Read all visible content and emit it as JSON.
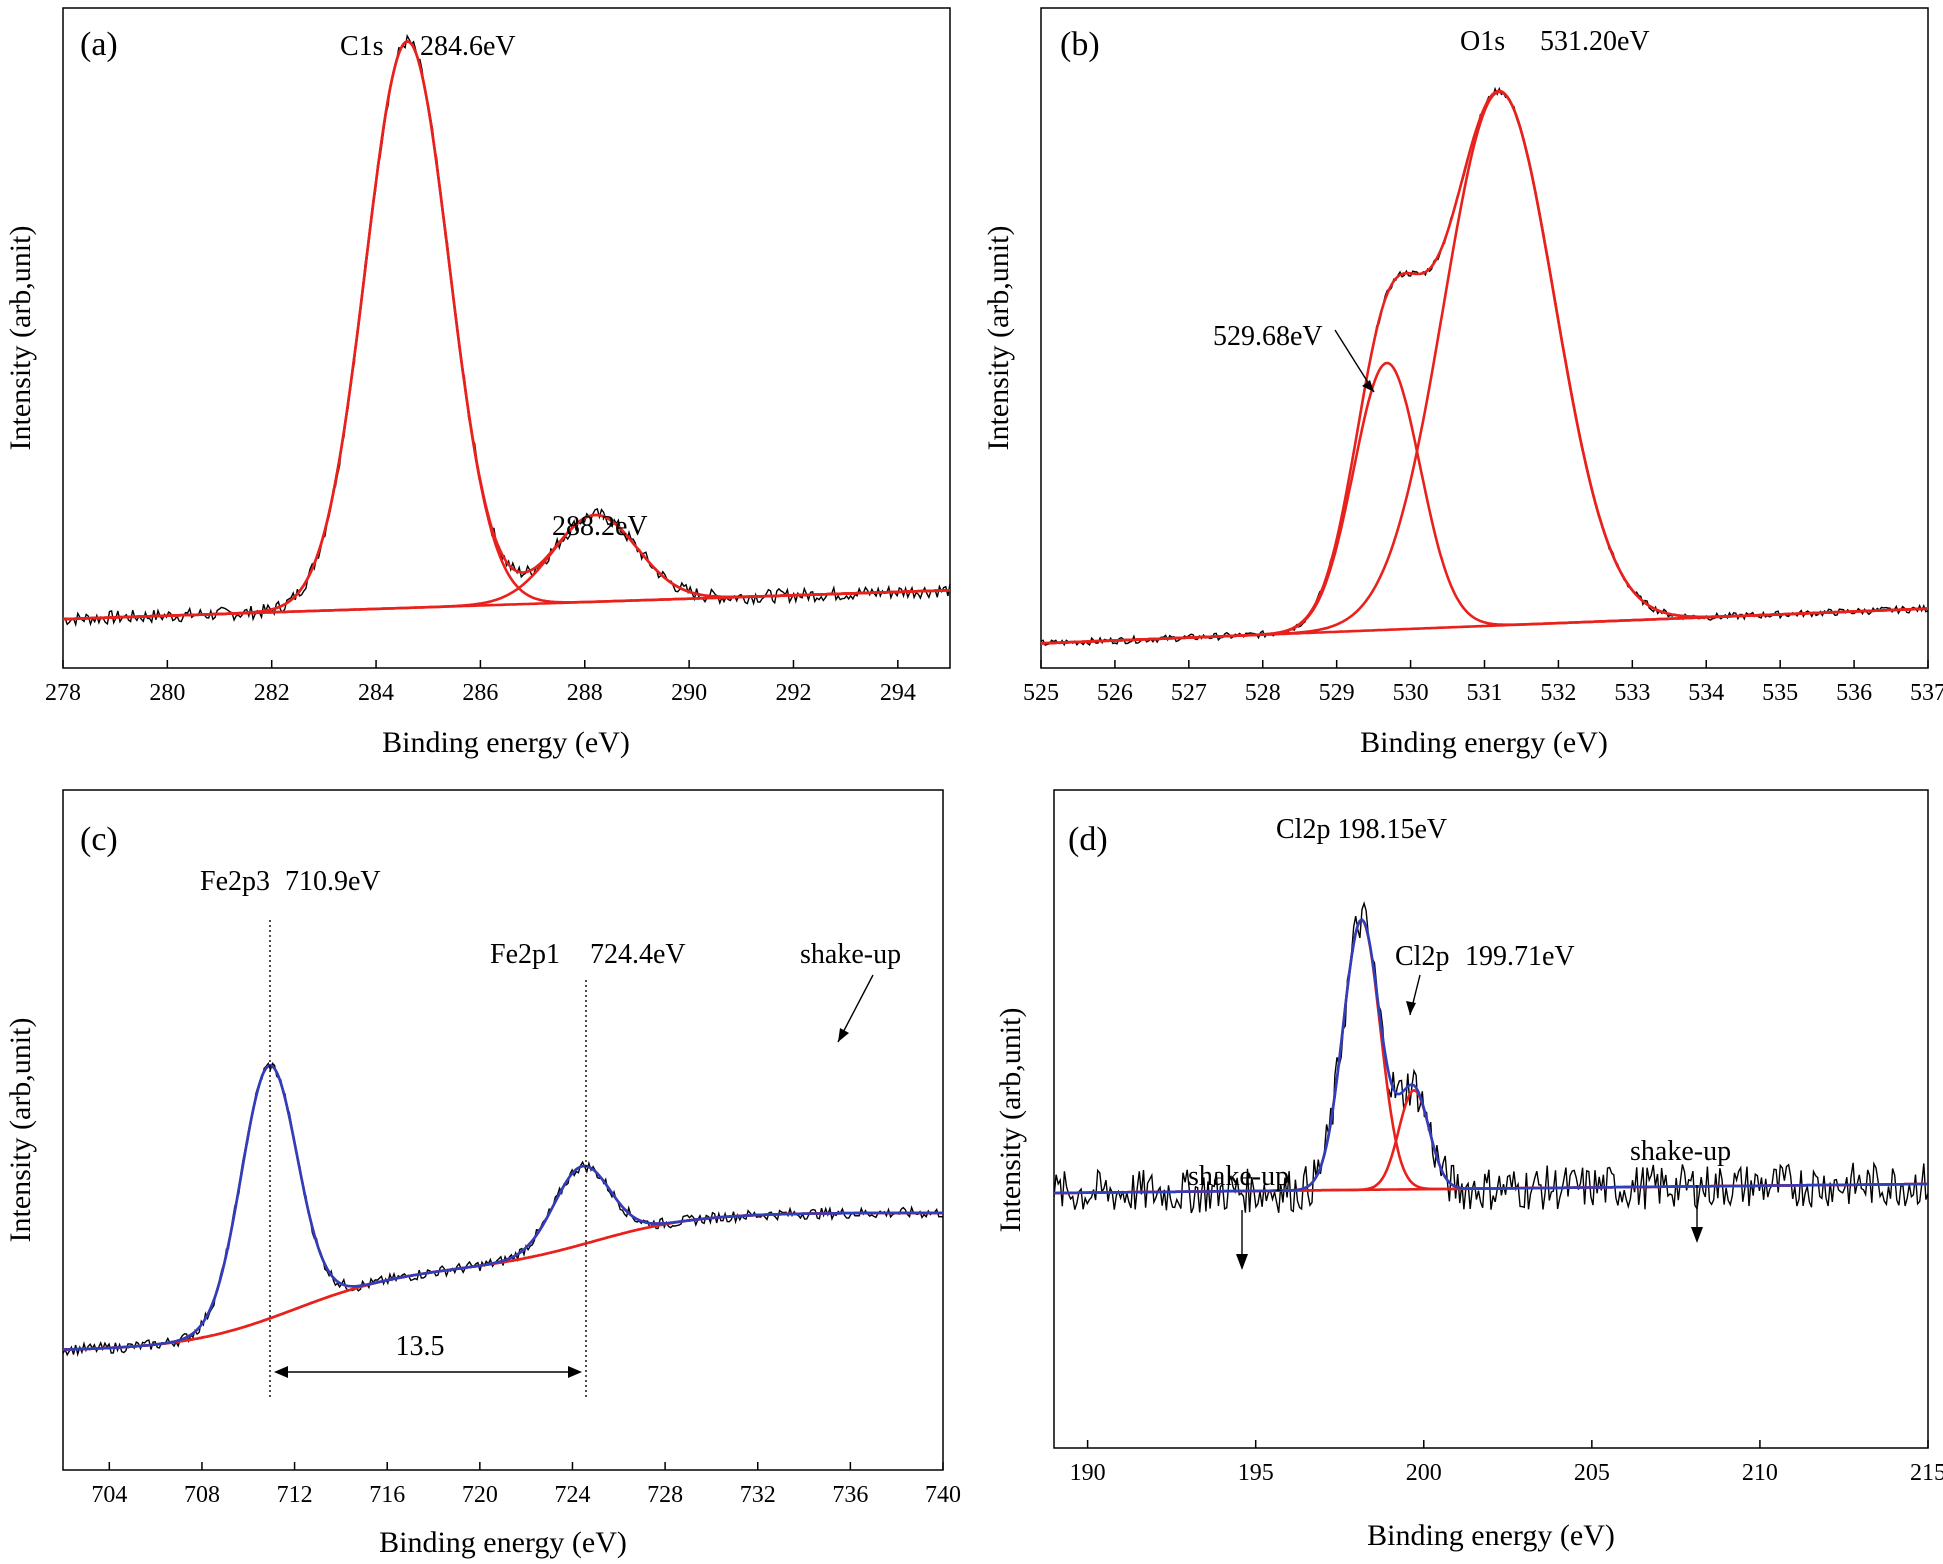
{
  "figure": {
    "colors": {
      "raw": "#000000",
      "component": "#e8211c",
      "envelope": "#2b3fbf"
    }
  },
  "chart_data": [
    {
      "type": "line",
      "panel": "(a)",
      "xlabel": "Binding energy (eV)",
      "ylabel": "Intensity (arb,unit)",
      "xlim": [
        278,
        295
      ],
      "xticks": [
        "278",
        "280",
        "282",
        "284",
        "286",
        "288",
        "290",
        "292",
        "294"
      ],
      "baseline": [
        [
          278,
          0.05
        ],
        [
          295,
          0.1
        ]
      ],
      "peaks": [
        {
          "center": 284.6,
          "height": 0.98,
          "sigma": 0.8,
          "label": "C1s",
          "value_label": "284.6eV"
        },
        {
          "center": 288.2,
          "height": 0.15,
          "sigma": 0.8,
          "label": "",
          "value_label": "288.2eV"
        }
      ],
      "noise": 0.012
    },
    {
      "type": "line",
      "panel": "(b)",
      "xlabel": "Binding energy (eV)",
      "ylabel": "Intensity (arb,unit)",
      "xlim": [
        525,
        537
      ],
      "xticks": [
        "525",
        "526",
        "527",
        "528",
        "529",
        "530",
        "531",
        "532",
        "533",
        "534",
        "535",
        "536",
        "537"
      ],
      "baseline": [
        [
          525,
          0.02
        ],
        [
          537,
          0.08
        ]
      ],
      "peaks": [
        {
          "center": 529.68,
          "height": 0.46,
          "sigma": 0.45,
          "label": "",
          "value_label": "529.68eV"
        },
        {
          "center": 531.2,
          "height": 0.92,
          "sigma": 0.75,
          "label": "O1s",
          "value_label": "531.20eV"
        }
      ],
      "noise": 0.006
    },
    {
      "type": "line",
      "panel": "(c)",
      "xlabel": "Binding energy (eV)",
      "ylabel": "Intensity (arb,unit)",
      "xlim": [
        702,
        740
      ],
      "xticks": [
        "704",
        "708",
        "712",
        "716",
        "720",
        "724",
        "728",
        "732",
        "736",
        "740"
      ],
      "baseline_type": "shirley",
      "peaks": [
        {
          "center": 710.9,
          "height": 0.55,
          "sigma": 1.2,
          "label": "Fe2p3",
          "value_label": "710.9eV"
        },
        {
          "center": 724.4,
          "height": 0.17,
          "sigma": 1.2,
          "label": "Fe2p1",
          "value_label": "724.4eV"
        }
      ],
      "splitting_label": "13.5",
      "satellite_label": "shake-up",
      "noise": 0.012
    },
    {
      "type": "line",
      "panel": "(d)",
      "xlabel": "Binding energy (eV)",
      "ylabel": "Intensity (arb,unit)",
      "xlim": [
        189,
        215
      ],
      "xticks": [
        "190",
        "195",
        "200",
        "205",
        "210",
        "215"
      ],
      "baseline": [
        [
          189,
          0.26
        ],
        [
          215,
          0.28
        ]
      ],
      "peaks": [
        {
          "center": 198.15,
          "height": 0.6,
          "sigma": 0.55,
          "label": "Cl2p",
          "value_label": "198.15eV"
        },
        {
          "center": 199.71,
          "height": 0.22,
          "sigma": 0.45,
          "label": "Cl2p",
          "value_label": "199.71eV"
        }
      ],
      "satellite_labels": [
        "shake-up",
        "shake-up"
      ],
      "noise": 0.05
    }
  ],
  "annotations": {
    "a": {
      "c1s": "C1s",
      "peak1": "284.6eV",
      "peak2": "288.2eV"
    },
    "b": {
      "o1s": "O1s",
      "peak1": "531.20eV",
      "peak2": "529.68eV"
    },
    "c": {
      "fe2p3": "Fe2p3",
      "peak1": "710.9eV",
      "fe2p1": "Fe2p1",
      "peak2": "724.4eV",
      "split": "13.5",
      "shake": "shake-up"
    },
    "d": {
      "cl2p_a": "Cl2p 198.15eV",
      "cl2p_b": "Cl2p",
      "peak2": "199.71eV",
      "shake1": "shake-up",
      "shake2": "shake-up"
    }
  }
}
